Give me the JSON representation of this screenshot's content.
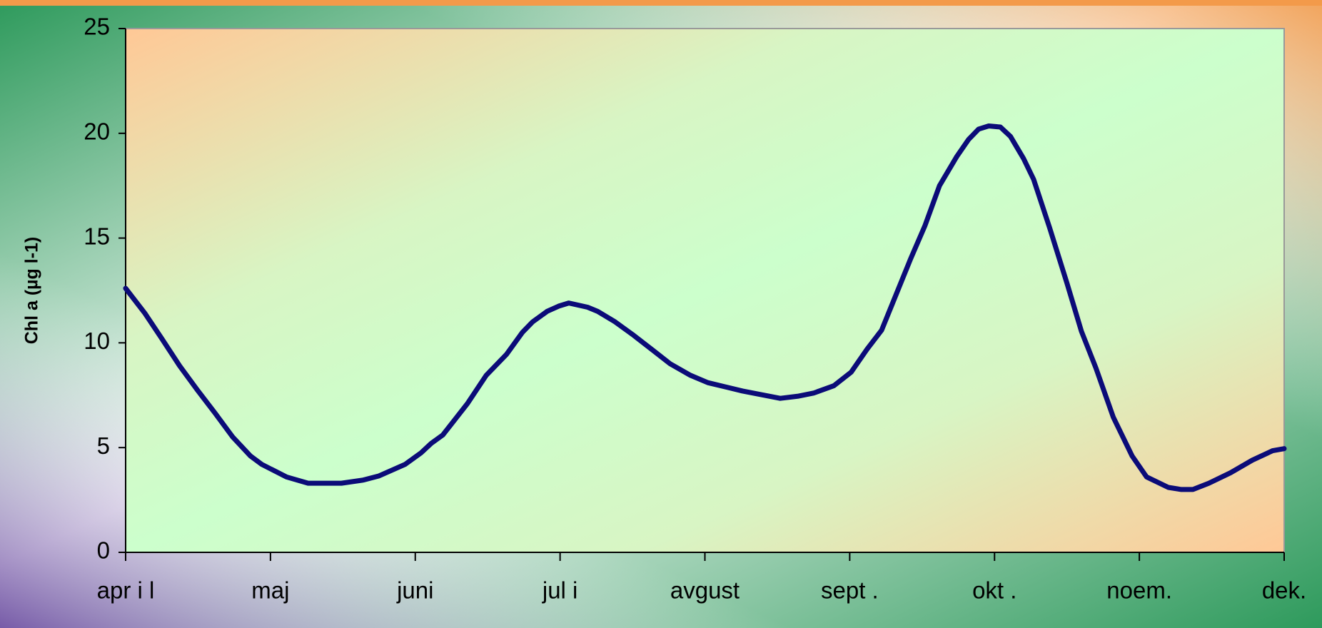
{
  "chart_data": {
    "type": "line",
    "y_label": "Chl a (µg l-1)",
    "x": [
      0,
      0.134,
      0.25,
      0.373,
      0.495,
      0.617,
      0.74,
      0.862,
      0.94,
      1.11,
      1.26,
      1.37,
      1.49,
      1.64,
      1.75,
      1.93,
      2.04,
      2.11,
      2.19,
      2.36,
      2.49,
      2.63,
      2.74,
      2.81,
      2.91,
      2.99,
      3.06,
      3.19,
      3.26,
      3.38,
      3.5,
      3.64,
      3.76,
      3.9,
      4.02,
      4.26,
      4.52,
      4.64,
      4.75,
      4.89,
      5.01,
      5.12,
      5.22,
      5.32,
      5.42,
      5.52,
      5.62,
      5.74,
      5.82,
      5.89,
      5.96,
      6.04,
      6.11,
      6.2,
      6.27,
      6.38,
      6.5,
      6.6,
      6.7,
      6.82,
      6.95,
      7.05,
      7.2,
      7.29,
      7.37,
      7.48,
      7.63,
      7.78,
      7.92,
      8
    ],
    "values": [
      12.6,
      11.4,
      10.2,
      8.9,
      7.75,
      6.65,
      5.5,
      4.6,
      4.2,
      3.6,
      3.3,
      3.3,
      3.3,
      3.45,
      3.65,
      4.2,
      4.75,
      5.2,
      5.6,
      7.1,
      8.45,
      9.45,
      10.5,
      11,
      11.5,
      11.75,
      11.9,
      11.7,
      11.5,
      11,
      10.4,
      9.65,
      9.0,
      8.45,
      8.1,
      7.7,
      7.35,
      7.45,
      7.6,
      7.95,
      8.6,
      9.7,
      10.6,
      12.3,
      14.0,
      15.6,
      17.5,
      18.9,
      19.7,
      20.2,
      20.35,
      20.3,
      19.85,
      18.8,
      17.8,
      15.5,
      12.85,
      10.55,
      8.8,
      6.45,
      4.6,
      3.6,
      3.1,
      3.0,
      3.0,
      3.3,
      3.8,
      4.4,
      4.85,
      4.95
    ],
    "color": "#0b0b78",
    "xlim": [
      0,
      8
    ],
    "xticks": [
      {
        "value": 0,
        "label": "apr i l"
      },
      {
        "value": 1,
        "label": "maj"
      },
      {
        "value": 2,
        "label": "juni"
      },
      {
        "value": 3,
        "label": "jul i"
      },
      {
        "value": 4,
        "label": "avgust"
      },
      {
        "value": 5,
        "label": "sept ."
      },
      {
        "value": 6,
        "label": "okt ."
      },
      {
        "value": 7,
        "label": "noem."
      },
      {
        "value": 8,
        "label": "dek."
      }
    ],
    "ylim": [
      0,
      25
    ],
    "yticks": [
      0,
      5,
      10,
      15,
      20,
      25
    ],
    "grid": false
  }
}
